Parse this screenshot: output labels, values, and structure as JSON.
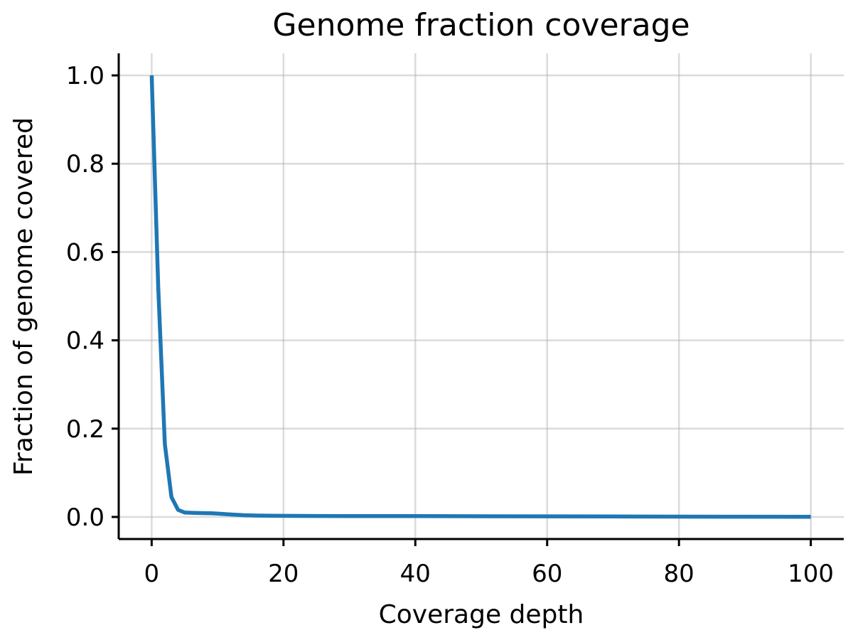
{
  "chart_data": {
    "type": "line",
    "title": "Genome fraction coverage",
    "xlabel": "Coverage depth",
    "ylabel": "Fraction of genome covered",
    "xlim": [
      -5,
      105
    ],
    "ylim": [
      -0.05,
      1.05
    ],
    "x_ticks": [
      0,
      20,
      40,
      60,
      80,
      100
    ],
    "y_ticks": [
      0.0,
      0.2,
      0.4,
      0.6,
      0.8,
      1.0
    ],
    "x_tick_labels": [
      "0",
      "20",
      "40",
      "60",
      "80",
      "100"
    ],
    "y_tick_labels": [
      "0.0",
      "0.2",
      "0.4",
      "0.6",
      "0.8",
      "1.0"
    ],
    "grid": true,
    "series": [
      {
        "color": "#1f77b4",
        "x": [
          0,
          1,
          2,
          3,
          4,
          5,
          6,
          7,
          8,
          9,
          10,
          12,
          14,
          16,
          18,
          20,
          25,
          30,
          40,
          50,
          60,
          70,
          80,
          90,
          100
        ],
        "y": [
          1.0,
          0.52,
          0.165,
          0.045,
          0.016,
          0.01,
          0.0095,
          0.009,
          0.0087,
          0.0083,
          0.0075,
          0.0055,
          0.004,
          0.0032,
          0.0028,
          0.0025,
          0.0022,
          0.002,
          0.0018,
          0.0016,
          0.0014,
          0.0011,
          0.0008,
          0.0006,
          0.0004
        ]
      }
    ]
  }
}
